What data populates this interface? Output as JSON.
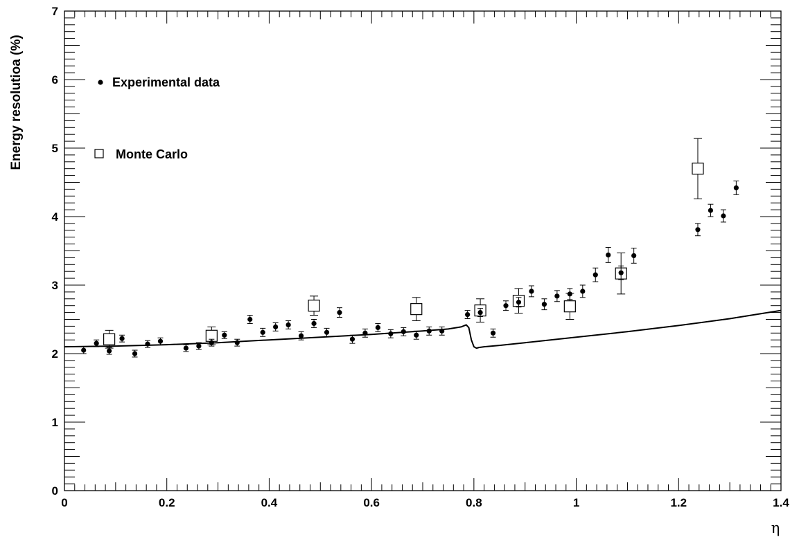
{
  "chart_data": {
    "type": "scatter",
    "title": "",
    "xlabel": "η",
    "ylabel": "Energy resolutioa (%)",
    "xlim": [
      0,
      1.4
    ],
    "ylim": [
      0,
      7
    ],
    "x_ticks": [
      0,
      0.2,
      0.4,
      0.6,
      0.8,
      1,
      1.2,
      1.4
    ],
    "x_tick_labels": [
      "0",
      "0.2",
      "0.4",
      "0.6",
      "0.8",
      "1",
      "1.2",
      "1.4"
    ],
    "y_ticks": [
      0,
      1,
      2,
      3,
      4,
      5,
      6,
      7
    ],
    "y_tick_labels": [
      "0",
      "1",
      "2",
      "3",
      "4",
      "5",
      "6",
      "7"
    ],
    "grid": false,
    "legend": [
      {
        "label": "Experimental data",
        "marker": "filled-circle"
      },
      {
        "label": "Monte Carlo",
        "marker": "open-square"
      }
    ],
    "series": [
      {
        "name": "Experimental data",
        "marker": "filled-circle",
        "x": [
          0.0375,
          0.0625,
          0.0875,
          0.1125,
          0.1375,
          0.1625,
          0.1875,
          0.2375,
          0.2625,
          0.2875,
          0.3125,
          0.3375,
          0.3625,
          0.3875,
          0.4125,
          0.4375,
          0.4625,
          0.4875,
          0.5125,
          0.5375,
          0.5625,
          0.5875,
          0.6125,
          0.6375,
          0.6625,
          0.6875,
          0.7125,
          0.7375,
          0.7875,
          0.8125,
          0.8375,
          0.8625,
          0.8875,
          0.9125,
          0.9375,
          0.9625,
          0.9875,
          1.0125,
          1.0375,
          1.0625,
          1.0875,
          1.1125,
          1.2375,
          1.2625,
          1.2875,
          1.3125
        ],
        "y": [
          2.05,
          2.15,
          2.04,
          2.22,
          2.0,
          2.14,
          2.18,
          2.08,
          2.11,
          2.16,
          2.27,
          2.16,
          2.5,
          2.31,
          2.39,
          2.42,
          2.26,
          2.44,
          2.31,
          2.6,
          2.21,
          2.3,
          2.38,
          2.29,
          2.32,
          2.27,
          2.33,
          2.33,
          2.57,
          2.6,
          2.3,
          2.7,
          2.75,
          2.91,
          2.72,
          2.84,
          2.87,
          2.91,
          3.15,
          3.44,
          3.18,
          3.43,
          3.81,
          4.09,
          4.01,
          4.42
        ],
        "err": [
          0.05,
          0.05,
          0.05,
          0.05,
          0.05,
          0.05,
          0.05,
          0.05,
          0.05,
          0.05,
          0.05,
          0.05,
          0.06,
          0.06,
          0.06,
          0.06,
          0.06,
          0.06,
          0.06,
          0.07,
          0.06,
          0.06,
          0.06,
          0.06,
          0.06,
          0.06,
          0.06,
          0.06,
          0.06,
          0.06,
          0.06,
          0.07,
          0.07,
          0.08,
          0.08,
          0.08,
          0.08,
          0.09,
          0.1,
          0.11,
          0.1,
          0.11,
          0.09,
          0.09,
          0.09,
          0.1
        ]
      },
      {
        "name": "Monte Carlo",
        "marker": "open-square",
        "x": [
          0.0875,
          0.2875,
          0.4875,
          0.6875,
          0.8125,
          0.8875,
          0.9875,
          1.0875,
          1.2375
        ],
        "y": [
          2.21,
          2.26,
          2.7,
          2.65,
          2.63,
          2.77,
          2.69,
          3.17,
          4.7
        ],
        "err": [
          0.13,
          0.13,
          0.14,
          0.17,
          0.17,
          0.18,
          0.19,
          0.3,
          0.44
        ]
      },
      {
        "name": "",
        "type": "line",
        "x": [
          0,
          0.1,
          0.2,
          0.3,
          0.4,
          0.5,
          0.6,
          0.7,
          0.75,
          0.775,
          0.785,
          0.79,
          0.795,
          0.8,
          0.805,
          0.81,
          0.82,
          0.85,
          0.9,
          1.0,
          1.1,
          1.2,
          1.3,
          1.4
        ],
        "y": [
          2.1,
          2.11,
          2.13,
          2.16,
          2.2,
          2.24,
          2.28,
          2.33,
          2.36,
          2.39,
          2.42,
          2.38,
          2.2,
          2.1,
          2.08,
          2.09,
          2.1,
          2.12,
          2.16,
          2.24,
          2.32,
          2.41,
          2.51,
          2.63
        ]
      }
    ]
  }
}
